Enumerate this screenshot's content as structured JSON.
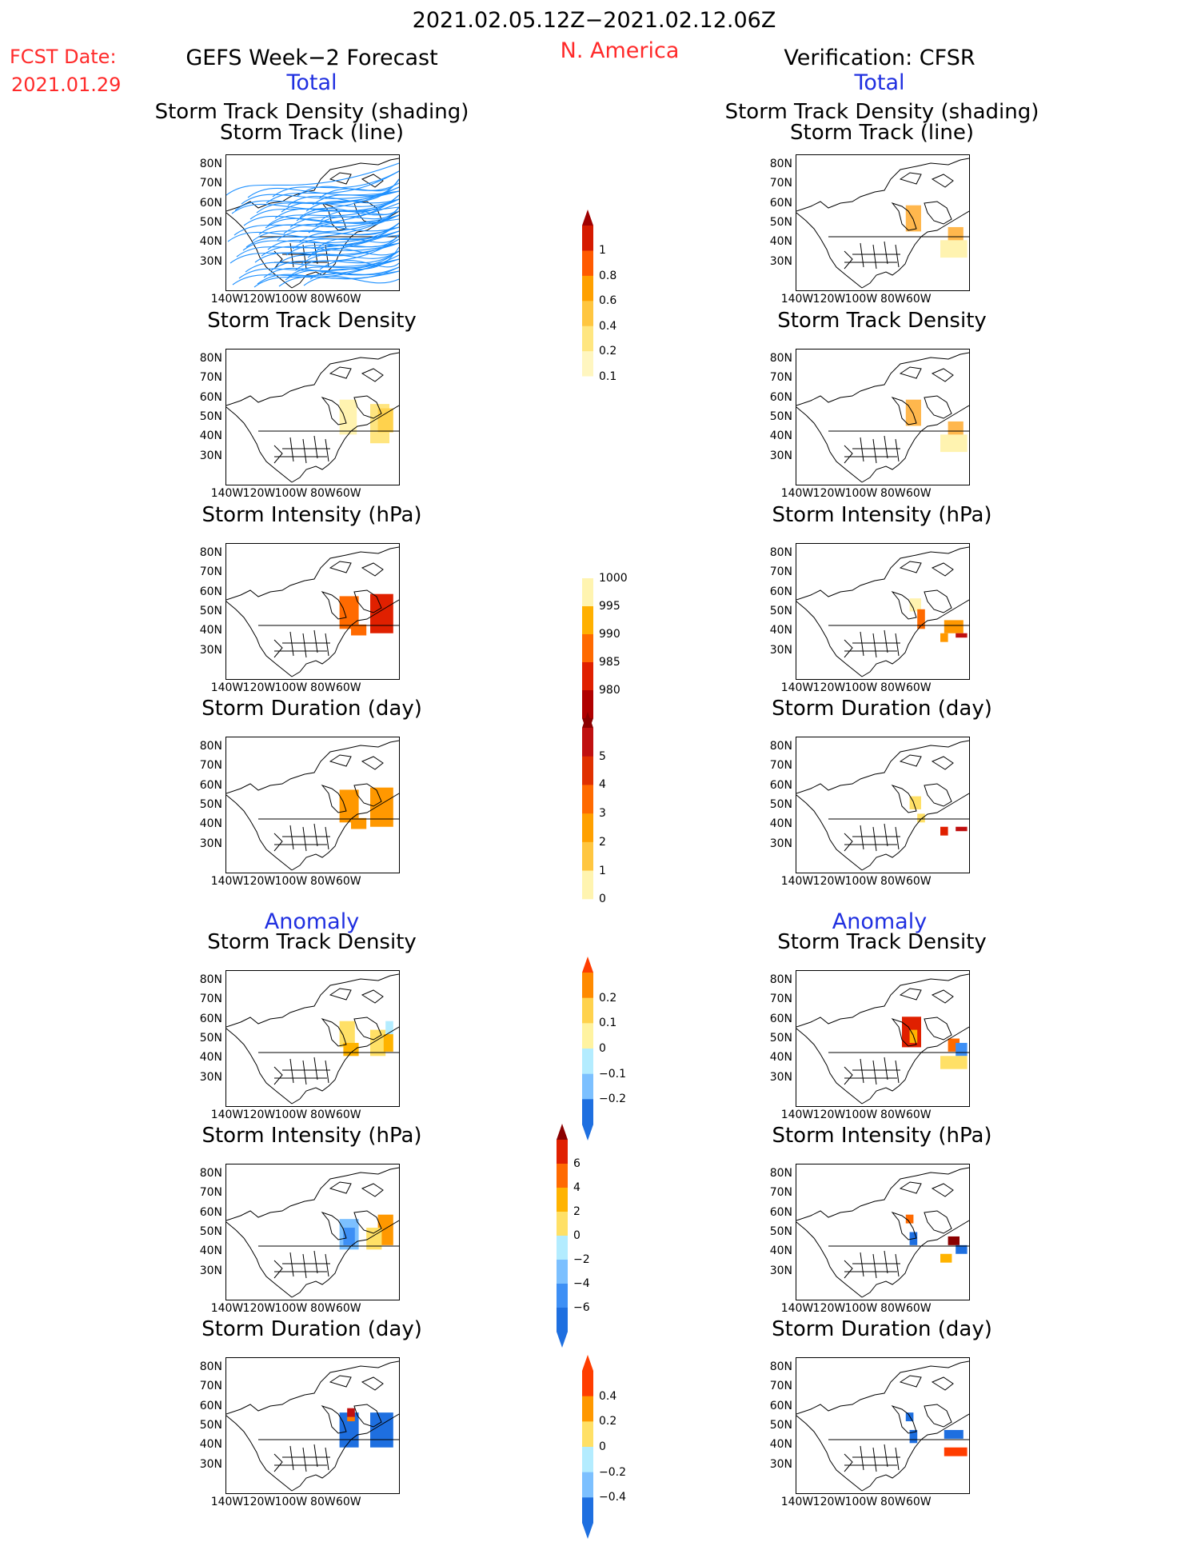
{
  "header": {
    "period": "2021.02.05.12Z−2021.02.12.06Z",
    "fcst_label": "FCST Date:",
    "fcst_date": "2021.01.29",
    "left_title": "GEFS Week−2 Forecast",
    "region": "N. America",
    "right_title": "Verification: CFSR",
    "total_label": "Total",
    "anomaly_label": "Anomaly"
  },
  "panel_titles": {
    "track_line": "Storm Track (line)",
    "track_shading": "Storm Track Density (shading)",
    "density": "Storm Track Density",
    "intensity": "Storm Intensity (hPa)",
    "duration": "Storm Duration (day)"
  },
  "axes": {
    "lat_labels": [
      "80N",
      "70N",
      "60N",
      "50N",
      "40N",
      "30N"
    ],
    "lon_labels": [
      "140W",
      "120W",
      "100W",
      "80W",
      "60W"
    ]
  },
  "colorbars": {
    "density_total": [
      "1",
      "0.8",
      "0.6",
      "0.4",
      "0.2",
      "0.1"
    ],
    "intensity_total": [
      "1000",
      "995",
      "990",
      "985",
      "980"
    ],
    "duration_total": [
      "5",
      "4",
      "3",
      "2",
      "1",
      "0"
    ],
    "density_anom": [
      "0.2",
      "0.1",
      "0",
      "−0.1",
      "−0.2"
    ],
    "intensity_anom": [
      "6",
      "4",
      "2",
      "0",
      "−2",
      "−4",
      "−6"
    ],
    "duration_anom": [
      "0.4",
      "0.2",
      "0",
      "−0.2",
      "−0.4"
    ]
  },
  "colors": {
    "title_blue": "#1f2fe0",
    "fcst_red": "#ff2a2a",
    "track_line": "#1e90ff"
  }
}
